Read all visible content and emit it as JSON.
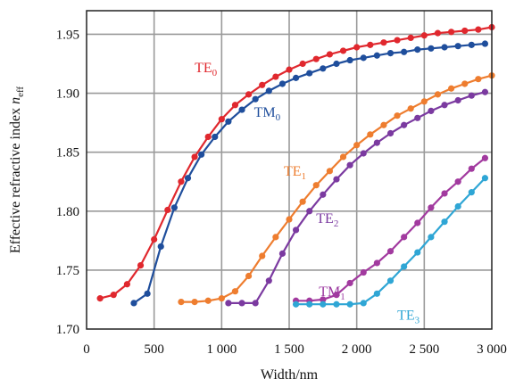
{
  "chart_data": {
    "type": "line",
    "title": "",
    "xlabel": "Width/nm",
    "ylabel_main": "Effective refractive index ",
    "ylabel_symbol": "n",
    "ylabel_subscript": "eff",
    "xlim": [
      0,
      3000
    ],
    "ylim": [
      1.7,
      1.97
    ],
    "xticks": [
      0,
      500,
      1000,
      1500,
      2000,
      2500,
      3000
    ],
    "xtick_labels": [
      "0",
      "500",
      "1 000",
      "1 500",
      "2 000",
      "2 500",
      "3 000"
    ],
    "yticks": [
      1.7,
      1.75,
      1.8,
      1.85,
      1.9,
      1.95
    ],
    "ytick_labels": [
      "1.70",
      "1.75",
      "1.80",
      "1.85",
      "1.90",
      "1.95"
    ],
    "grid": true,
    "series": [
      {
        "name": "TE",
        "subscript": "0",
        "color": "#e0282e",
        "label_at": [
          800,
          1.918
        ],
        "label_color": "#e0282e",
        "x": [
          100,
          200,
          300,
          400,
          500,
          600,
          700,
          800,
          900,
          1000,
          1100,
          1200,
          1300,
          1400,
          1500,
          1600,
          1700,
          1800,
          1900,
          2000,
          2100,
          2200,
          2300,
          2400,
          2500,
          2600,
          2700,
          2800,
          2900,
          3000
        ],
        "y": [
          1.726,
          1.729,
          1.738,
          1.754,
          1.776,
          1.801,
          1.825,
          1.846,
          1.863,
          1.878,
          1.89,
          1.899,
          1.907,
          1.914,
          1.92,
          1.925,
          1.929,
          1.933,
          1.936,
          1.939,
          1.941,
          1.943,
          1.945,
          1.947,
          1.949,
          1.951,
          1.952,
          1.953,
          1.954,
          1.956
        ]
      },
      {
        "name": "TM",
        "subscript": "0",
        "color": "#1f4e9c",
        "label_at": [
          1240,
          1.88
        ],
        "label_color": "#1f4e9c",
        "x": [
          350,
          450,
          550,
          650,
          750,
          850,
          950,
          1050,
          1150,
          1250,
          1350,
          1450,
          1550,
          1650,
          1750,
          1850,
          1950,
          2050,
          2150,
          2250,
          2350,
          2450,
          2550,
          2650,
          2750,
          2850,
          2950
        ],
        "y": [
          1.722,
          1.73,
          1.77,
          1.803,
          1.828,
          1.848,
          1.863,
          1.876,
          1.886,
          1.895,
          1.902,
          1.908,
          1.913,
          1.917,
          1.921,
          1.925,
          1.928,
          1.93,
          1.932,
          1.934,
          1.935,
          1.937,
          1.938,
          1.939,
          1.94,
          1.941,
          1.942
        ]
      },
      {
        "name": "TE",
        "subscript": "1",
        "color": "#ee7d2f",
        "label_at": [
          1460,
          1.83
        ],
        "label_color": "#ee7d2f",
        "x": [
          700,
          800,
          900,
          1000,
          1100,
          1200,
          1300,
          1400,
          1500,
          1600,
          1700,
          1800,
          1900,
          2000,
          2100,
          2200,
          2300,
          2400,
          2500,
          2600,
          2700,
          2800,
          2900,
          3000
        ],
        "y": [
          1.723,
          1.723,
          1.724,
          1.726,
          1.732,
          1.745,
          1.762,
          1.778,
          1.793,
          1.808,
          1.822,
          1.834,
          1.846,
          1.856,
          1.865,
          1.873,
          1.881,
          1.887,
          1.893,
          1.899,
          1.904,
          1.908,
          1.912,
          1.915
        ]
      },
      {
        "name": "TE",
        "subscript": "2",
        "color": "#7b3aa0",
        "label_at": [
          1700,
          1.79
        ],
        "label_color": "#7b3aa0",
        "x": [
          1050,
          1150,
          1250,
          1350,
          1450,
          1550,
          1650,
          1750,
          1850,
          1950,
          2050,
          2150,
          2250,
          2350,
          2450,
          2550,
          2650,
          2750,
          2850,
          2950
        ],
        "y": [
          1.722,
          1.722,
          1.722,
          1.741,
          1.764,
          1.784,
          1.8,
          1.814,
          1.827,
          1.839,
          1.849,
          1.858,
          1.866,
          1.873,
          1.879,
          1.885,
          1.89,
          1.894,
          1.898,
          1.901
        ]
      },
      {
        "name": "TM",
        "subscript": "1",
        "color": "#a23a9f",
        "label_at": [
          1720,
          1.728
        ],
        "label_color": "#9c3aa0",
        "x": [
          1550,
          1650,
          1750,
          1850,
          1950,
          2050,
          2150,
          2250,
          2350,
          2450,
          2550,
          2650,
          2750,
          2850,
          2950
        ],
        "y": [
          1.724,
          1.724,
          1.725,
          1.729,
          1.739,
          1.748,
          1.756,
          1.766,
          1.778,
          1.79,
          1.803,
          1.815,
          1.825,
          1.836,
          1.845
        ]
      },
      {
        "name": "TE",
        "subscript": "3",
        "color": "#2fa6d5",
        "label_at": [
          2300,
          1.708
        ],
        "label_color": "#2fa6d5",
        "x": [
          1550,
          1650,
          1750,
          1850,
          1950,
          2050,
          2150,
          2250,
          2350,
          2450,
          2550,
          2650,
          2750,
          2850,
          2950
        ],
        "y": [
          1.721,
          1.721,
          1.721,
          1.721,
          1.721,
          1.722,
          1.73,
          1.741,
          1.753,
          1.765,
          1.778,
          1.791,
          1.804,
          1.816,
          1.828
        ]
      }
    ]
  }
}
